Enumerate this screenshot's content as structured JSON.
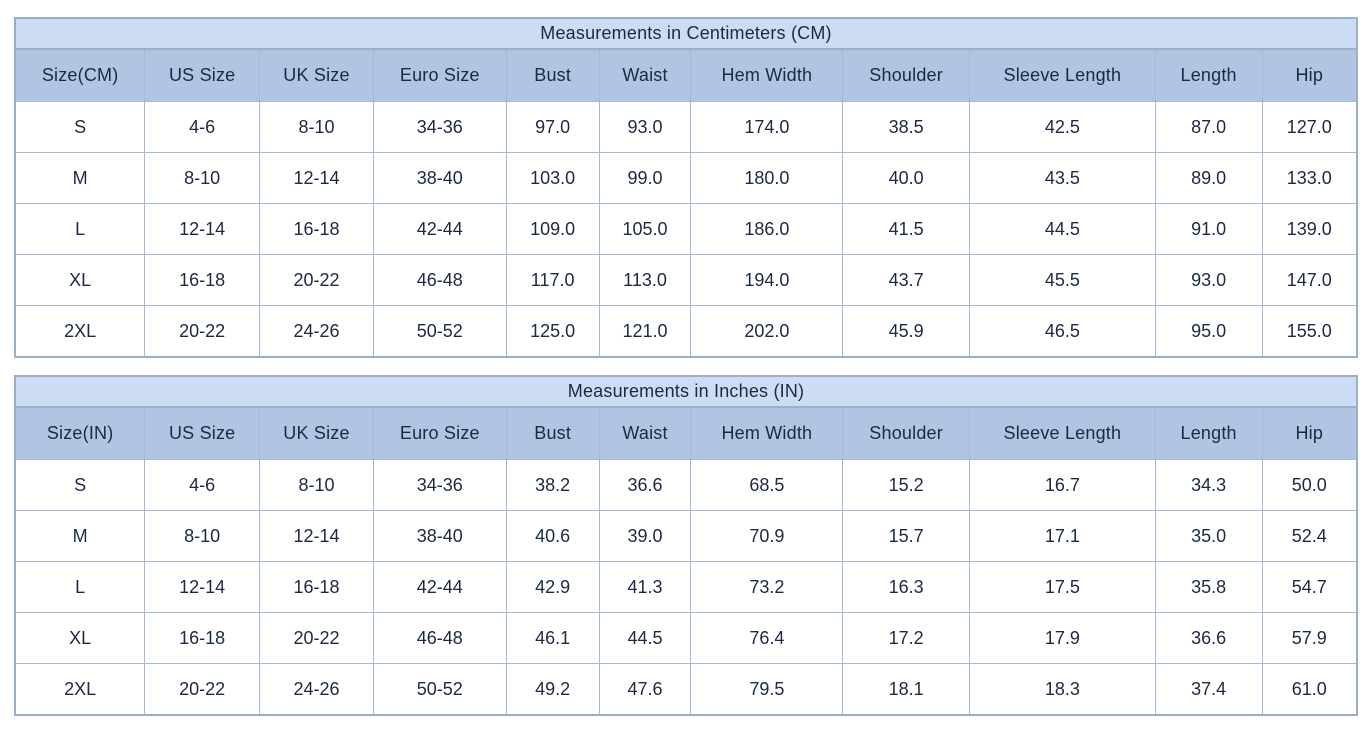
{
  "colors": {
    "title_bg": "#cbdcf4",
    "header_bg": "#b1c4e2",
    "row_bg": "#ffffff",
    "inner_border": "#a4b9d3",
    "outer_border": "#9bafc9",
    "text": "#1b2a42",
    "page_bg": "#ffffff"
  },
  "chart_data": [
    {
      "type": "table",
      "title": "Measurements in Centimeters (CM)",
      "columns": [
        "Size(CM)",
        "US Size",
        "UK Size",
        "Euro Size",
        "Bust",
        "Waist",
        "Hem Width",
        "Shoulder",
        "Sleeve Length",
        "Length",
        "Hip"
      ],
      "rows": [
        [
          "S",
          "4-6",
          "8-10",
          "34-36",
          "97.0",
          "93.0",
          "174.0",
          "38.5",
          "42.5",
          "87.0",
          "127.0"
        ],
        [
          "M",
          "8-10",
          "12-14",
          "38-40",
          "103.0",
          "99.0",
          "180.0",
          "40.0",
          "43.5",
          "89.0",
          "133.0"
        ],
        [
          "L",
          "12-14",
          "16-18",
          "42-44",
          "109.0",
          "105.0",
          "186.0",
          "41.5",
          "44.5",
          "91.0",
          "139.0"
        ],
        [
          "XL",
          "16-18",
          "20-22",
          "46-48",
          "117.0",
          "113.0",
          "194.0",
          "43.7",
          "45.5",
          "93.0",
          "147.0"
        ],
        [
          "2XL",
          "20-22",
          "24-26",
          "50-52",
          "125.0",
          "121.0",
          "202.0",
          "45.9",
          "46.5",
          "95.0",
          "155.0"
        ]
      ]
    },
    {
      "type": "table",
      "title": "Measurements in Inches (IN)",
      "columns": [
        "Size(IN)",
        "US Size",
        "UK Size",
        "Euro Size",
        "Bust",
        "Waist",
        "Hem Width",
        "Shoulder",
        "Sleeve Length",
        "Length",
        "Hip"
      ],
      "rows": [
        [
          "S",
          "4-6",
          "8-10",
          "34-36",
          "38.2",
          "36.6",
          "68.5",
          "15.2",
          "16.7",
          "34.3",
          "50.0"
        ],
        [
          "M",
          "8-10",
          "12-14",
          "38-40",
          "40.6",
          "39.0",
          "70.9",
          "15.7",
          "17.1",
          "35.0",
          "52.4"
        ],
        [
          "L",
          "12-14",
          "16-18",
          "42-44",
          "42.9",
          "41.3",
          "73.2",
          "16.3",
          "17.5",
          "35.8",
          "54.7"
        ],
        [
          "XL",
          "16-18",
          "20-22",
          "46-48",
          "46.1",
          "44.5",
          "76.4",
          "17.2",
          "17.9",
          "36.6",
          "57.9"
        ],
        [
          "2XL",
          "20-22",
          "24-26",
          "50-52",
          "49.2",
          "47.6",
          "79.5",
          "18.1",
          "18.3",
          "37.4",
          "61.0"
        ]
      ]
    }
  ]
}
